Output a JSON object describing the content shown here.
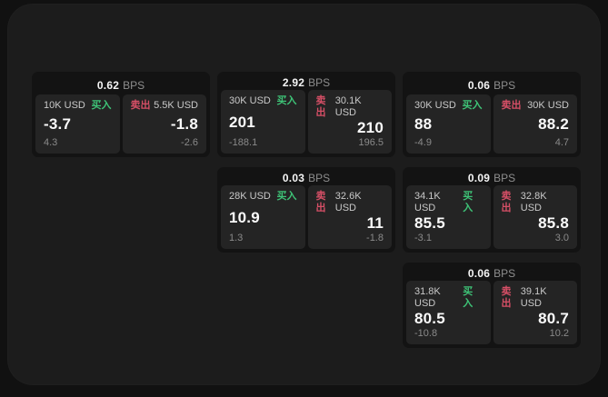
{
  "labels": {
    "buy": "买入",
    "sell": "卖出",
    "bps_unit": "BPS"
  },
  "colors": {
    "buy": "#3ec377",
    "sell": "#d64f66",
    "window_bg": "#1c1c1c",
    "card_bg": "#131313",
    "panel_bg": "#242424"
  },
  "cards": [
    {
      "row": 1,
      "col": 1,
      "bps": "0.62",
      "buy": {
        "size": "10K USD",
        "price": "-3.7",
        "delta": "4.3"
      },
      "sell": {
        "size": "5.5K USD",
        "price": "-1.8",
        "delta": "-2.6"
      }
    },
    {
      "row": 1,
      "col": 2,
      "bps": "2.92",
      "buy": {
        "size": "30K USD",
        "price": "201",
        "delta": "-188.1"
      },
      "sell": {
        "size": "30.1K USD",
        "price": "210",
        "delta": "196.5"
      }
    },
    {
      "row": 1,
      "col": 3,
      "bps": "0.06",
      "buy": {
        "size": "30K USD",
        "price": "88",
        "delta": "-4.9"
      },
      "sell": {
        "size": "30K USD",
        "price": "88.2",
        "delta": "4.7"
      }
    },
    {
      "row": 2,
      "col": 2,
      "bps": "0.03",
      "buy": {
        "size": "28K USD",
        "price": "10.9",
        "delta": "1.3"
      },
      "sell": {
        "size": "32.6K USD",
        "price": "11",
        "delta": "-1.8"
      }
    },
    {
      "row": 2,
      "col": 3,
      "bps": "0.09",
      "buy": {
        "size": "34.1K USD",
        "price": "85.5",
        "delta": "-3.1"
      },
      "sell": {
        "size": "32.8K USD",
        "price": "85.8",
        "delta": "3.0"
      }
    },
    {
      "row": 3,
      "col": 3,
      "bps": "0.06",
      "buy": {
        "size": "31.8K USD",
        "price": "80.5",
        "delta": "-10.8"
      },
      "sell": {
        "size": "39.1K USD",
        "price": "80.7",
        "delta": "10.2"
      }
    }
  ]
}
